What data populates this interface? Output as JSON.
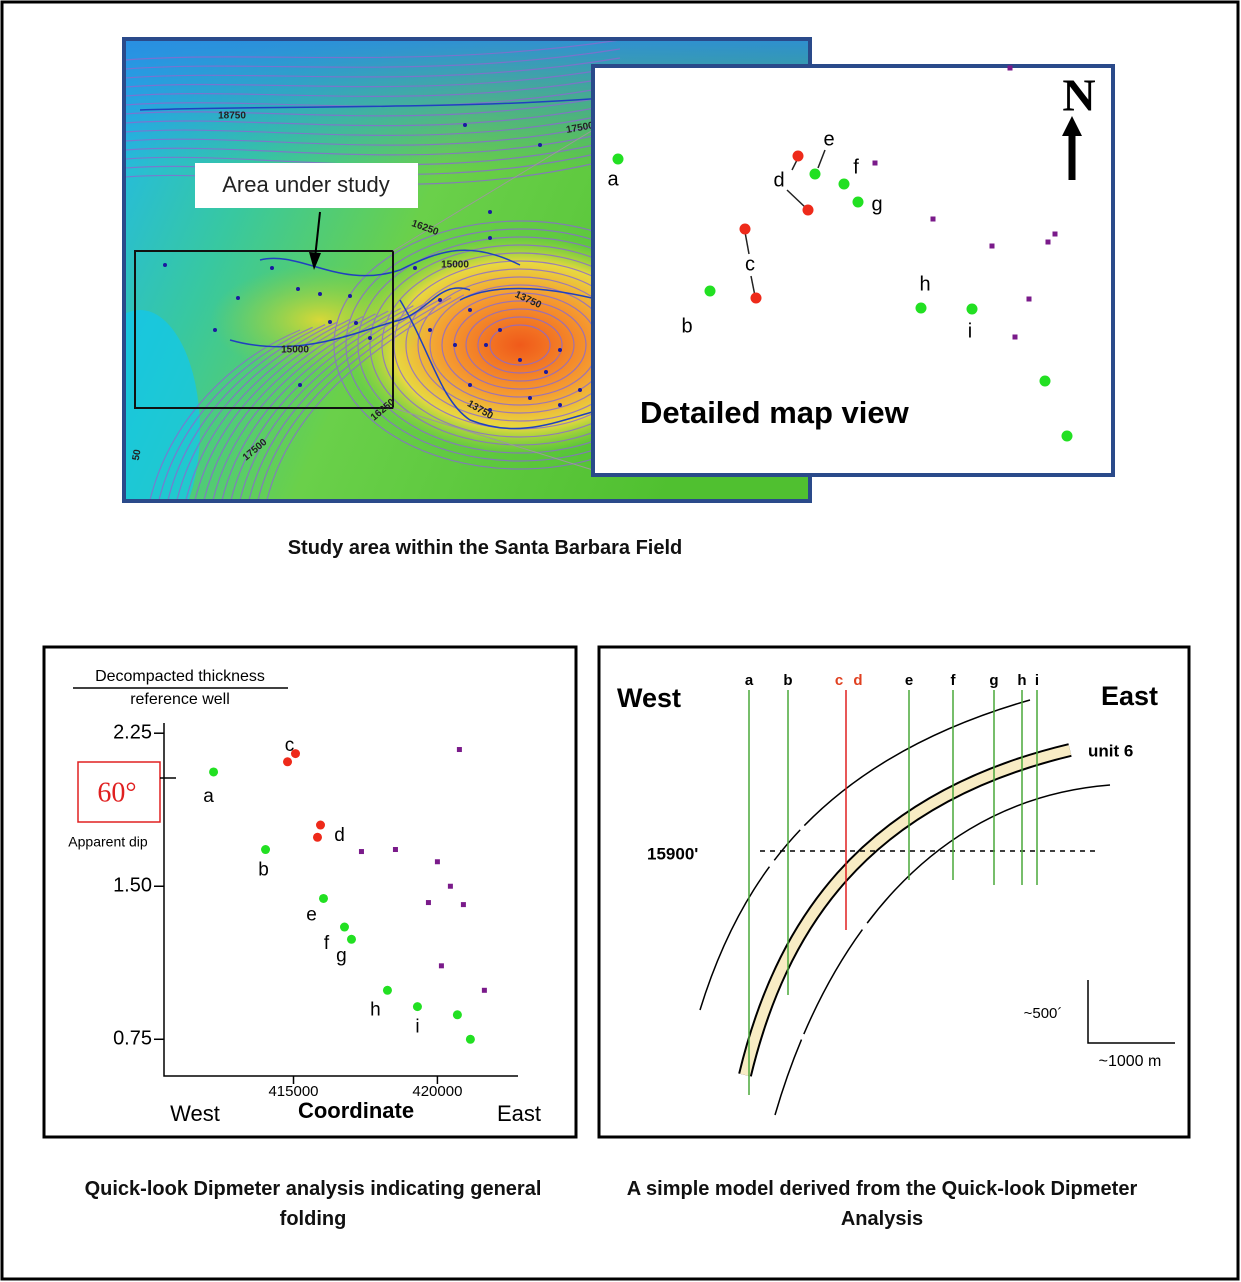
{
  "figure": {
    "map": {
      "contour_labels": [
        "18750",
        "17500",
        "16250",
        "15000",
        "13750",
        "15000",
        "16250",
        "13750",
        "17500",
        "50"
      ],
      "area_label": "Area under study",
      "caption": "Study area within the Santa Barbara Field"
    },
    "detail": {
      "north": "N",
      "title": "Detailed map view",
      "well_labels": [
        "a",
        "b",
        "c",
        "d",
        "e",
        "f",
        "g",
        "h",
        "i"
      ]
    },
    "model": {
      "west": "West",
      "east": "East",
      "well_labels": [
        "a",
        "b",
        "c",
        "d",
        "e",
        "f",
        "g",
        "h",
        "i"
      ],
      "unit": "unit 6",
      "depth": "15900'",
      "vertical_scale": "~500´",
      "horizontal_scale": "~1000 m",
      "caption": "A simple model derived from the Quick-look Dipmeter Analysis"
    }
  },
  "chart_data": {
    "type": "scatter",
    "ylabel_top": "Decompacted thickness",
    "ylabel_bottom": "reference well",
    "xlabel": "Coordinate",
    "x_left": "West",
    "x_right": "East",
    "dip_value": "60°",
    "dip_label": "Apparent dip",
    "caption": "Quick-look Dipmeter analysis indicating general folding",
    "xlim": [
      410500,
      422800
    ],
    "xticks": [
      415000,
      420000
    ],
    "ylim": [
      0.57,
      2.3
    ],
    "yticks": [
      {
        "value": 0.75,
        "label": "0.75"
      },
      {
        "value": 1.5,
        "label": "1.50"
      },
      {
        "value": 2.25,
        "label": "2.25"
      }
    ],
    "series": [
      {
        "color": "#22e022",
        "marker": "circle",
        "x": [
          412222,
          414028,
          416042,
          416771,
          417014,
          418264,
          419306,
          420694,
          421146
        ],
        "values": [
          2.06,
          1.68,
          1.44,
          1.3,
          1.24,
          0.99,
          0.91,
          0.87,
          0.75
        ],
        "labels": [
          "a",
          "b",
          "e",
          "f",
          "g",
          "h",
          "i",
          null,
          null
        ]
      },
      {
        "color": "#ee2a1a",
        "marker": "circle",
        "x": [
          414792,
          415069,
          415938,
          415833
        ],
        "values": [
          2.11,
          2.15,
          1.8,
          1.74
        ],
        "labels": [
          "c",
          null,
          "d",
          null
        ]
      },
      {
        "color": "#7a1a8a",
        "marker": "square",
        "x": [
          420764,
          417361,
          418542,
          420000,
          420451,
          420903,
          419688,
          420139,
          421632
        ],
        "values": [
          2.17,
          1.67,
          1.68,
          1.62,
          1.5,
          1.41,
          1.42,
          1.11,
          0.99
        ]
      }
    ]
  }
}
